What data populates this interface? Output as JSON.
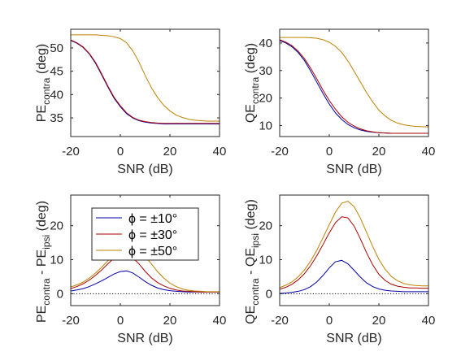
{
  "chart_data": [
    {
      "type": "line",
      "xlabel": "SNR (dB)",
      "ylabel": {
        "main": "PE",
        "sub": "contra",
        "suffix": " (deg)"
      },
      "xlim": [
        -20,
        40
      ],
      "ylim": [
        31,
        54
      ],
      "xticks": [
        "-20",
        "0",
        "20",
        "40"
      ],
      "yticks": [
        "35",
        "40",
        "45",
        "50"
      ],
      "x": [
        -20,
        -17.5,
        -15,
        -12.5,
        -10,
        -7.5,
        -5,
        -2.5,
        0,
        2.5,
        5,
        7.5,
        10,
        12.5,
        15,
        17.5,
        20,
        22.5,
        25,
        27.5,
        30,
        32.5,
        35,
        37.5,
        40
      ],
      "series": [
        {
          "color": "#0000aa",
          "values": [
            51.6,
            51.0,
            50.1,
            48.7,
            46.7,
            44.2,
            41.6,
            39.2,
            37.4,
            35.9,
            35.0,
            34.4,
            34.1,
            33.9,
            33.8,
            33.7,
            33.7,
            33.7,
            33.7,
            33.7,
            33.7,
            33.7,
            33.7,
            33.7,
            33.7
          ]
        },
        {
          "color": "#aa0000",
          "values": [
            51.7,
            51.1,
            50.2,
            48.8,
            46.9,
            44.4,
            41.8,
            39.4,
            37.6,
            36.1,
            35.1,
            34.5,
            34.2,
            34.0,
            33.9,
            33.8,
            33.8,
            33.8,
            33.8,
            33.8,
            33.8,
            33.8,
            33.8,
            33.8,
            33.8
          ]
        },
        {
          "color": "#c08000",
          "values": [
            52.8,
            52.8,
            52.8,
            52.8,
            52.8,
            52.7,
            52.6,
            52.4,
            52.0,
            51.1,
            49.4,
            47.0,
            44.1,
            41.5,
            39.4,
            37.7,
            36.5,
            35.6,
            35.1,
            34.7,
            34.5,
            34.4,
            34.3,
            34.3,
            34.3
          ]
        }
      ]
    },
    {
      "type": "line",
      "xlabel": "SNR (dB)",
      "ylabel": {
        "main": "QE",
        "sub": "contra",
        "suffix": " (deg)"
      },
      "xlim": [
        -20,
        40
      ],
      "ylim": [
        6,
        45
      ],
      "xticks": [
        "-20",
        "0",
        "20",
        "40"
      ],
      "yticks": [
        "10",
        "20",
        "30",
        "40"
      ],
      "x": [
        -20,
        -17.5,
        -15,
        -12.5,
        -10,
        -7.5,
        -5,
        -2.5,
        0,
        2.5,
        5,
        7.5,
        10,
        12.5,
        15,
        17.5,
        20,
        22.5,
        25,
        27.5,
        30,
        32.5,
        35,
        37.5,
        40
      ],
      "series": [
        {
          "color": "#0000aa",
          "values": [
            40.9,
            40.0,
            38.6,
            36.5,
            33.6,
            29.8,
            25.7,
            21.6,
            17.8,
            14.6,
            12.2,
            10.4,
            9.2,
            8.4,
            7.9,
            7.6,
            7.4,
            7.3,
            7.2,
            7.2,
            7.2,
            7.2,
            7.2,
            7.2,
            7.2
          ]
        },
        {
          "color": "#aa0000",
          "values": [
            41.2,
            40.3,
            39.0,
            37.0,
            34.3,
            30.8,
            26.9,
            22.8,
            19.1,
            15.9,
            13.2,
            11.2,
            9.8,
            8.8,
            8.1,
            7.7,
            7.4,
            7.3,
            7.2,
            7.2,
            7.2,
            7.2,
            7.2,
            7.2,
            7.2
          ]
        },
        {
          "color": "#c08000",
          "values": [
            42.0,
            42.0,
            42.0,
            42.0,
            42.0,
            41.9,
            41.7,
            41.2,
            40.3,
            38.8,
            36.6,
            33.5,
            29.8,
            25.9,
            22.0,
            18.6,
            15.6,
            13.5,
            11.9,
            10.9,
            10.3,
            9.9,
            9.7,
            9.6,
            9.5
          ]
        }
      ]
    },
    {
      "type": "line",
      "xlabel": "SNR (dB)",
      "ylabel": {
        "main": "PE",
        "sub": "contra",
        "mid": " - PE",
        "sub2": "ipsi",
        "suffix": " (deg)"
      },
      "xlim": [
        -20,
        40
      ],
      "ylim": [
        -3.5,
        29
      ],
      "xticks": [
        "-20",
        "0",
        "20",
        "40"
      ],
      "yticks": [
        "0",
        "10",
        "20"
      ],
      "x": [
        -20,
        -17.5,
        -15,
        -12.5,
        -10,
        -7.5,
        -5,
        -2.5,
        0,
        2.5,
        5,
        7.5,
        10,
        12.5,
        15,
        17.5,
        20,
        22.5,
        25,
        27.5,
        30,
        32.5,
        35,
        37.5,
        40
      ],
      "reference_line": 0,
      "legend": {
        "position": "top-right",
        "entries": [
          "ϕ = ±10°",
          "ϕ = ±30°",
          "ϕ = ±50°"
        ]
      },
      "series": [
        {
          "color": "#0000aa",
          "values": [
            0.8,
            1.1,
            1.5,
            2.1,
            2.9,
            3.8,
            4.8,
            5.8,
            6.5,
            6.7,
            6.1,
            4.9,
            3.6,
            2.5,
            1.7,
            1.2,
            0.9,
            0.7,
            0.6,
            0.5,
            0.5,
            0.5,
            0.5,
            0.5,
            0.5
          ]
        },
        {
          "color": "#aa0000",
          "values": [
            1.5,
            2.1,
            2.9,
            4.0,
            5.4,
            7.0,
            8.8,
            10.5,
            11.5,
            11.6,
            10.6,
            8.8,
            6.6,
            4.7,
            3.3,
            2.3,
            1.6,
            1.1,
            0.8,
            0.7,
            0.6,
            0.5,
            0.5,
            0.5,
            0.5
          ]
        },
        {
          "color": "#c08000",
          "values": [
            2.0,
            2.6,
            3.4,
            4.6,
            6.1,
            7.8,
            9.7,
            11.3,
            12.6,
            13.4,
            13.6,
            12.6,
            11.0,
            8.8,
            6.5,
            4.6,
            3.1,
            2.1,
            1.4,
            1.0,
            0.8,
            0.7,
            0.6,
            0.6,
            0.6
          ]
        }
      ]
    },
    {
      "type": "line",
      "xlabel": "SNR (dB)",
      "ylabel": {
        "main": "QE",
        "sub": "contra",
        "mid": " - QE",
        "sub2": "ipsi",
        "suffix": " (deg)"
      },
      "xlim": [
        -20,
        40
      ],
      "ylim": [
        -3.5,
        29
      ],
      "xticks": [
        "-20",
        "0",
        "20",
        "40"
      ],
      "yticks": [
        "0",
        "10",
        "20"
      ],
      "x": [
        -20,
        -17.5,
        -15,
        -12.5,
        -10,
        -7.5,
        -5,
        -2.5,
        0,
        2.5,
        5,
        7.5,
        10,
        12.5,
        15,
        17.5,
        20,
        22.5,
        25,
        27.5,
        30,
        32.5,
        35,
        37.5,
        40
      ],
      "reference_line": 0,
      "series": [
        {
          "color": "#0000aa",
          "values": [
            0.1,
            0.2,
            0.4,
            0.7,
            1.2,
            2.1,
            3.5,
            5.4,
            7.6,
            9.4,
            9.8,
            8.8,
            6.9,
            4.9,
            3.2,
            2.1,
            1.4,
            1.0,
            0.8,
            0.7,
            0.6,
            0.6,
            0.6,
            0.6,
            0.6
          ]
        },
        {
          "color": "#aa0000",
          "values": [
            1.3,
            1.9,
            2.8,
            4.1,
            5.9,
            8.3,
            11.2,
            14.5,
            17.9,
            20.9,
            22.6,
            22.3,
            19.9,
            16.2,
            12.1,
            8.5,
            5.7,
            3.9,
            2.8,
            2.2,
            1.9,
            1.7,
            1.7,
            1.6,
            1.6
          ]
        },
        {
          "color": "#c08000",
          "values": [
            1.8,
            2.5,
            3.5,
            5.0,
            7.0,
            9.6,
            12.8,
            16.5,
            20.3,
            24.0,
            26.6,
            27.2,
            25.6,
            22.3,
            18.1,
            13.9,
            10.1,
            7.2,
            5.1,
            3.8,
            3.0,
            2.6,
            2.4,
            2.3,
            2.3
          ]
        }
      ]
    }
  ]
}
